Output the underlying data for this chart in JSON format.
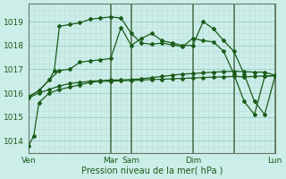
{
  "background_color": "#cceee8",
  "grid_major_color": "#99cccc",
  "grid_minor_color": "#bbdddd",
  "vline_color": "#557755",
  "line_color": "#1a5c1a",
  "xlabel": "Pression niveau de la mer( hPa )",
  "ylim": [
    1013.5,
    1019.75
  ],
  "xlim": [
    0,
    240
  ],
  "yticks": [
    1014,
    1015,
    1016,
    1017,
    1018,
    1019
  ],
  "day_positions": [
    0,
    80,
    100,
    160,
    200,
    240
  ],
  "day_labels": [
    "Ven",
    "Mar",
    "Sam",
    "Dim",
    "",
    "Lun"
  ],
  "line1_x": [
    0,
    5,
    10,
    20,
    30,
    40,
    50,
    60,
    70,
    80,
    90,
    100,
    110,
    120,
    130,
    140,
    150,
    160,
    170,
    180,
    190,
    200,
    210,
    220,
    230,
    240
  ],
  "line1_y": [
    1013.8,
    1014.2,
    1015.6,
    1016.0,
    1016.15,
    1016.25,
    1016.35,
    1016.45,
    1016.5,
    1016.5,
    1016.52,
    1016.53,
    1016.55,
    1016.57,
    1016.58,
    1016.6,
    1016.62,
    1016.63,
    1016.65,
    1016.67,
    1016.68,
    1016.7,
    1016.68,
    1016.7,
    1016.72,
    1016.72
  ],
  "line2_x": [
    0,
    10,
    20,
    30,
    40,
    50,
    60,
    70,
    80,
    90,
    100,
    110,
    120,
    130,
    140,
    150,
    160,
    170,
    180,
    190,
    200,
    210,
    220,
    230,
    240
  ],
  "line2_y": [
    1015.8,
    1016.0,
    1016.15,
    1016.3,
    1016.4,
    1016.45,
    1016.5,
    1016.52,
    1016.55,
    1016.55,
    1016.57,
    1016.6,
    1016.65,
    1016.7,
    1016.75,
    1016.8,
    1016.82,
    1016.85,
    1016.88,
    1016.9,
    1016.92,
    1016.9,
    1016.88,
    1016.88,
    1016.75
  ],
  "line3_x": [
    0,
    10,
    20,
    30,
    40,
    50,
    60,
    70,
    80,
    90,
    100,
    110,
    120,
    130,
    140,
    150,
    160,
    170,
    180,
    190,
    200,
    210,
    220,
    230,
    240
  ],
  "line3_y": [
    1015.85,
    1016.1,
    1016.55,
    1016.95,
    1017.0,
    1017.3,
    1017.35,
    1017.4,
    1017.45,
    1018.75,
    1018.0,
    1018.3,
    1018.5,
    1018.2,
    1018.1,
    1018.0,
    1018.0,
    1019.0,
    1018.7,
    1018.2,
    1017.75,
    1016.8,
    1015.65,
    1015.1,
    1016.7
  ],
  "line4_x": [
    0,
    10,
    20,
    25,
    30,
    40,
    50,
    60,
    70,
    80,
    90,
    100,
    110,
    120,
    130,
    140,
    150,
    160,
    170,
    180,
    190,
    200,
    210,
    220,
    230,
    240
  ],
  "line4_y": [
    1015.85,
    1016.1,
    1016.55,
    1016.95,
    1018.8,
    1018.88,
    1018.95,
    1019.1,
    1019.15,
    1019.2,
    1019.15,
    1018.5,
    1018.1,
    1018.05,
    1018.1,
    1018.02,
    1017.95,
    1018.3,
    1018.2,
    1018.15,
    1017.75,
    1016.8,
    1015.65,
    1015.1,
    1016.7,
    1016.75
  ]
}
